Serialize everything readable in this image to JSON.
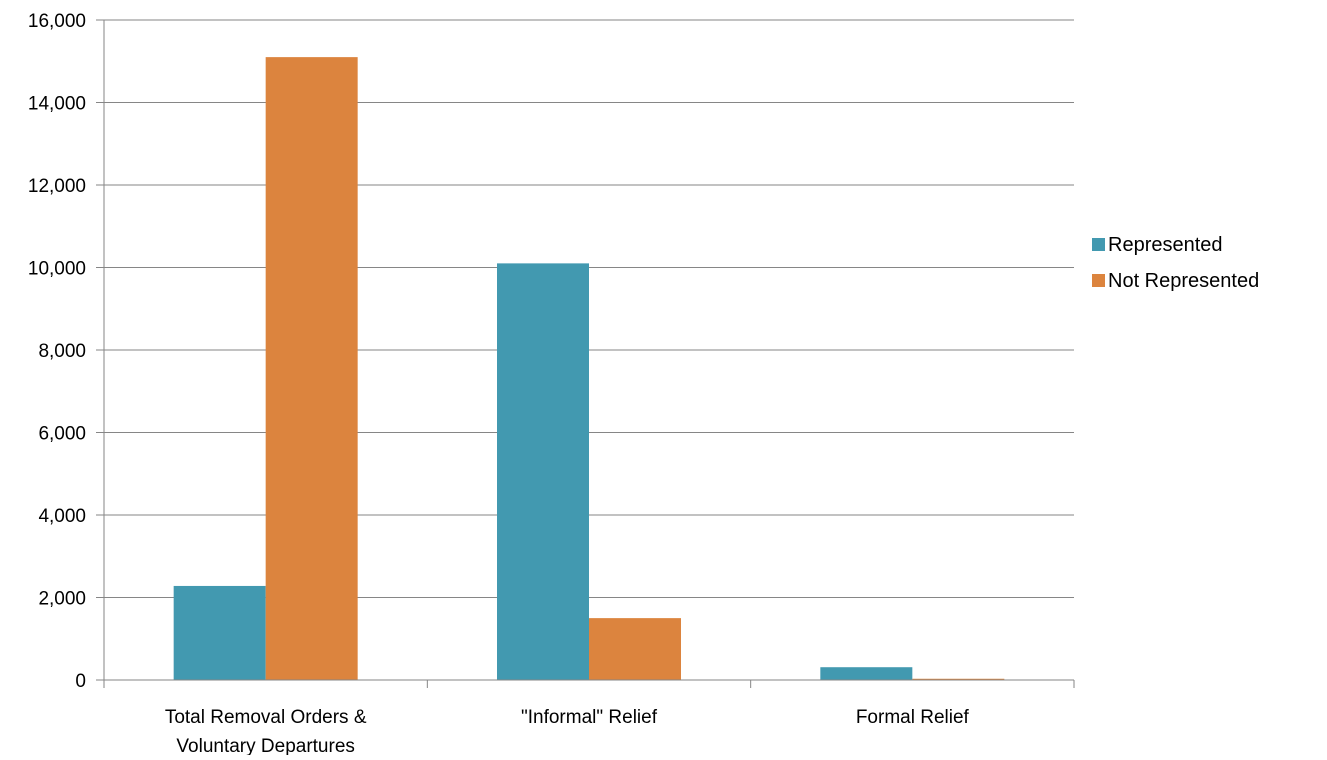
{
  "chart_data": {
    "type": "bar",
    "title": "",
    "xlabel": "",
    "ylabel": "",
    "categories": [
      [
        "Total Removal Orders &",
        "Voluntary Departures"
      ],
      [
        "\"Informal\" Relief"
      ],
      [
        "Formal Relief"
      ]
    ],
    "series": [
      {
        "name": "Represented",
        "color": "#4299B0",
        "values": [
          2280,
          10100,
          310
        ]
      },
      {
        "name": "Not Represented",
        "color": "#DC843E",
        "values": [
          15100,
          1500,
          30
        ]
      }
    ],
    "ylim": [
      0,
      16000
    ],
    "yticks": [
      0,
      2000,
      4000,
      6000,
      8000,
      10000,
      12000,
      14000,
      16000
    ],
    "ytick_labels": [
      "0",
      "2,000",
      "4,000",
      "6,000",
      "8,000",
      "10,000",
      "12,000",
      "14,000",
      "16,000"
    ],
    "grid": true,
    "legend_position": "right"
  }
}
